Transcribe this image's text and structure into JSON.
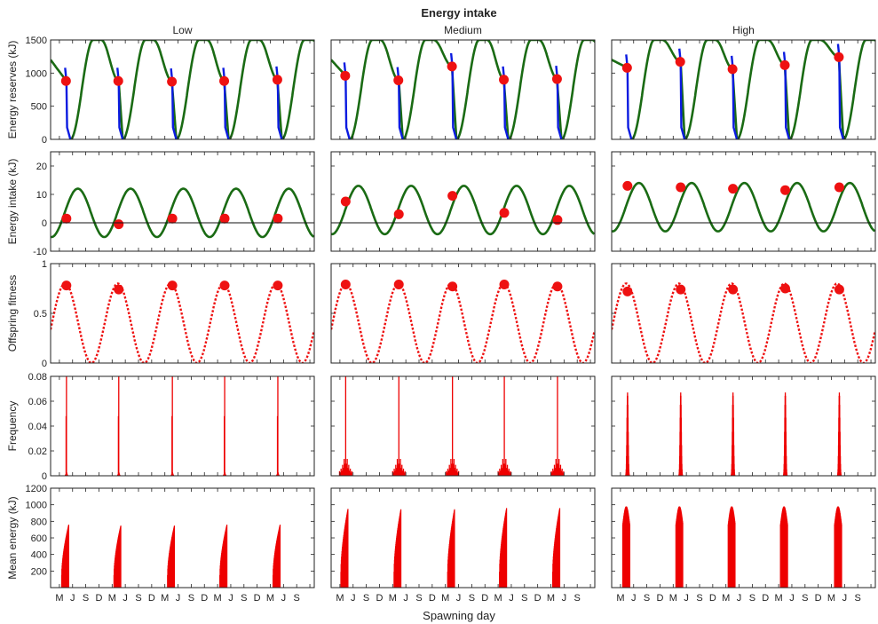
{
  "chart_data": {
    "type": "panel-grid",
    "title": "Energy intake",
    "xlabel": "Spawning day",
    "columns": [
      "Low",
      "Medium",
      "High"
    ],
    "x_tick_labels": [
      "M",
      "J",
      "S",
      "D",
      "M",
      "J",
      "S",
      "D",
      "M",
      "J",
      "S",
      "D",
      "M",
      "J",
      "S",
      "D",
      "M",
      "J",
      "S"
    ],
    "years": 5,
    "rows": [
      {
        "ylabel": "Energy reserves (kJ)",
        "ylim": [
          0,
          1500
        ],
        "yticks": [
          0,
          500,
          1000,
          1500
        ]
      },
      {
        "ylabel": "Energy intake (kJ)",
        "ylim": [
          -10,
          25
        ],
        "yticks": [
          -10,
          0,
          10,
          20
        ]
      },
      {
        "ylabel": "Offspring fitness",
        "ylim": [
          0,
          1
        ],
        "yticks": [
          0,
          0.5,
          1
        ]
      },
      {
        "ylabel": "Frequency",
        "ylim": [
          0,
          0.08
        ],
        "yticks": [
          0,
          0.02,
          0.04,
          0.06,
          0.08
        ]
      },
      {
        "ylabel": "Mean energy (kJ)",
        "ylim": [
          0,
          1200
        ],
        "yticks": [
          200,
          400,
          600,
          800,
          1000,
          1200
        ]
      }
    ],
    "colors": {
      "reserves": "#1a6b14",
      "spawn_drop": "#0b1be0",
      "marker": "#ee1111",
      "fitness": "#ee1111",
      "bars": "#ee0000"
    },
    "spawn_month": [
      [
        3.6,
        3.5,
        3.7,
        3.6,
        3.7
      ],
      [
        3.3,
        3.4,
        3.6,
        3.4,
        3.5
      ],
      [
        3.6,
        3.7,
        3.6,
        3.5,
        3.8
      ]
    ],
    "reserve_at_spawn": [
      [
        880,
        880,
        870,
        880,
        900
      ],
      [
        960,
        890,
        1100,
        900,
        910
      ],
      [
        1080,
        1170,
        1060,
        1120,
        1240
      ]
    ],
    "intake_at_spawn": [
      [
        1.5,
        -0.5,
        1.5,
        1.5,
        1.5
      ],
      [
        7.5,
        3.0,
        9.5,
        3.5,
        1.0
      ],
      [
        13.0,
        12.5,
        12.0,
        11.5,
        12.5
      ]
    ],
    "intake_mean": [
      3.5,
      4.5,
      5.5
    ],
    "intake_amplitude": 8.5,
    "fitness_at_spawn": [
      [
        0.78,
        0.74,
        0.78,
        0.78,
        0.78
      ],
      [
        0.79,
        0.79,
        0.77,
        0.79,
        0.77
      ],
      [
        0.72,
        0.74,
        0.74,
        0.75,
        0.74
      ]
    ],
    "freq_peak": [
      [
        0.08,
        0.08,
        0.08,
        0.08,
        0.08
      ],
      [
        0.08,
        0.08,
        0.08,
        0.08,
        0.08
      ],
      [
        0.067,
        0.067,
        0.067,
        0.067,
        0.067
      ]
    ],
    "mean_energy_peak": [
      [
        760,
        760,
        760,
        760,
        760
      ],
      [
        950,
        960,
        960,
        960,
        960
      ],
      [
        980,
        980,
        980,
        980,
        980
      ]
    ]
  }
}
